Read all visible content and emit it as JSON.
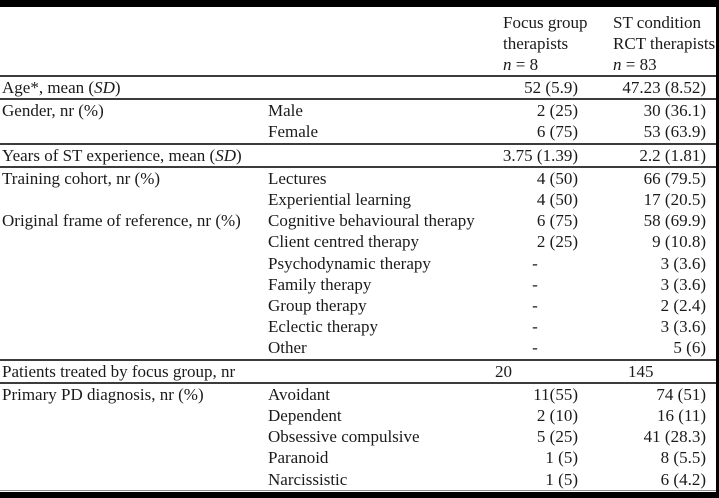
{
  "colors": {
    "background": "#ffffff",
    "text": "#1a1a1a",
    "section_rule": "#3c3c3c",
    "frame_rule": "#000000"
  },
  "table": {
    "header": {
      "focus_group_lines": [
        "Focus group",
        "therapists",
        "n = 8"
      ],
      "st_condition_lines": [
        "ST condition",
        "RCT therapists",
        "n = 83"
      ]
    },
    "rows": [
      {
        "label": "Age*, mean (SD)",
        "sub": "",
        "v1": "52 (5.9)",
        "v2": "47.23 (8.52)",
        "rule_below": true
      },
      {
        "label": "Gender, nr (%)",
        "sub": "Male",
        "v1": "2 (25)",
        "v2": "30 (36.1)"
      },
      {
        "label": "",
        "sub": "Female",
        "v1": "6 (75)",
        "v2": "53 (63.9)",
        "rule_below": true
      },
      {
        "label": "Years of ST experience, mean (SD)",
        "sub": "",
        "v1": "3.75 (1.39)",
        "v2": "2.2 (1.81)",
        "rule_below": true
      },
      {
        "label": "Training cohort, nr (%)",
        "sub": "Lectures",
        "v1": "4 (50)",
        "v2": "66 (79.5)"
      },
      {
        "label": "",
        "sub": "Experiential learning",
        "v1": "4 (50)",
        "v2": "17 (20.5)"
      },
      {
        "label": "Original frame of reference, nr (%)",
        "sub": "Cognitive behavioural therapy",
        "v1": "6 (75)",
        "v2": "58 (69.9)"
      },
      {
        "label": "",
        "sub": "Client centred therapy",
        "v1": "2 (25)",
        "v2": "9 (10.8)"
      },
      {
        "label": "",
        "sub": "Psychodynamic therapy",
        "v1": "-",
        "v2": "3 (3.6)"
      },
      {
        "label": "",
        "sub": "Family therapy",
        "v1": "-",
        "v2": "3 (3.6)"
      },
      {
        "label": "",
        "sub": "Group therapy",
        "v1": "-",
        "v2": "2 (2.4)"
      },
      {
        "label": "",
        "sub": "Eclectic therapy",
        "v1": "-",
        "v2": "3 (3.6)"
      },
      {
        "label": "",
        "sub": "Other",
        "v1": "-",
        "v2": "5 (6)",
        "rule_below": true
      },
      {
        "label": "Patients treated by focus group, nr",
        "sub": "",
        "v1": "20",
        "v2": "145",
        "rule_below": true,
        "values_align": "left"
      },
      {
        "label": "Primary PD diagnosis, nr (%)",
        "sub": "Avoidant",
        "v1": "11(55)",
        "v2": "74 (51)"
      },
      {
        "label": "",
        "sub": "Dependent",
        "v1": "2 (10)",
        "v2": "16 (11)"
      },
      {
        "label": "",
        "sub": "Obsessive compulsive",
        "v1": "5 (25)",
        "v2": "41 (28.3)"
      },
      {
        "label": "",
        "sub": "Paranoid",
        "v1": "1 (5)",
        "v2": "8 (5.5)"
      },
      {
        "label": "",
        "sub": "Narcissistic",
        "v1": "1 (5)",
        "v2": "6 (4.2)"
      }
    ]
  }
}
